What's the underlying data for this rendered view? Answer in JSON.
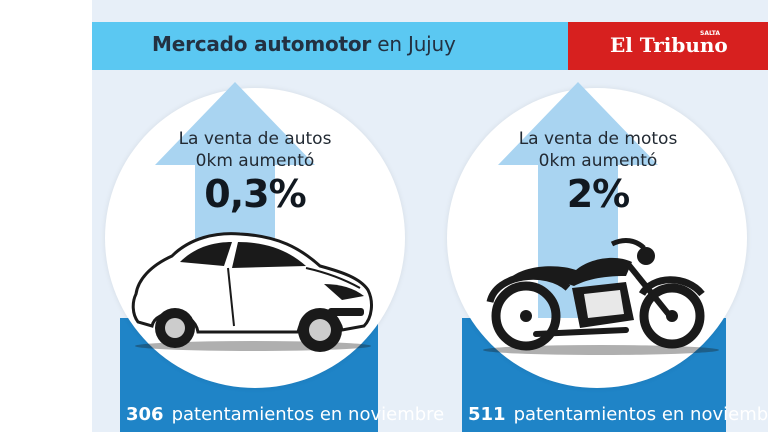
{
  "header": {
    "title_bold": "Mercado automotor",
    "title_rest": " en Jujuy",
    "brand": "El Tribuno",
    "brand_mark": "SALTA"
  },
  "cards": [
    {
      "title_line1": "La venta de autos",
      "title_line2": "0km aumentó",
      "percent": "0,3%",
      "count": "306",
      "count_label": "patentamientos en noviembre",
      "icon": "car-icon"
    },
    {
      "title_line1": "La venta de motos",
      "title_line2": "0km aumentó",
      "percent": "2%",
      "count": "511",
      "count_label": "patentamientos en noviembre",
      "icon": "motorcycle-icon"
    }
  ],
  "colors": {
    "header": "#5bc8f2",
    "brand": "#d7201f",
    "band": "#1f84c7",
    "arrow": "#a9d4f1",
    "panel": "#e7eff8"
  }
}
